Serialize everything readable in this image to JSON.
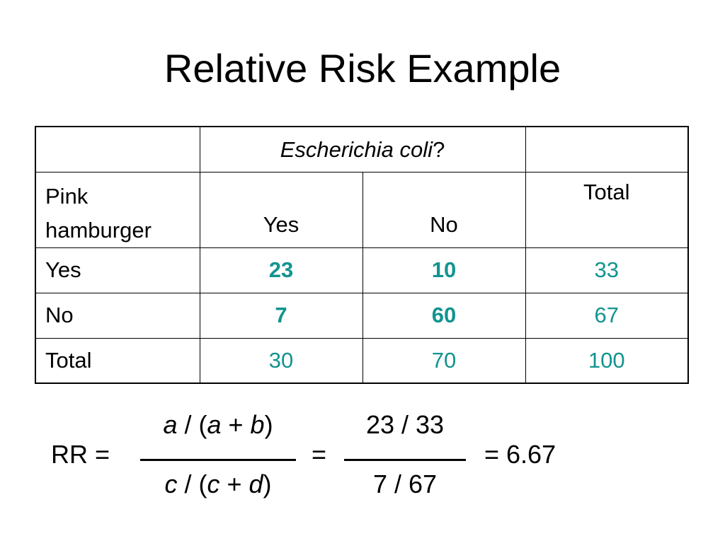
{
  "slide": {
    "title": "Relative Risk Example"
  },
  "table": {
    "header": {
      "exposure_var_label": "",
      "outcome_var_italic": "Escherichia coli",
      "outcome_var_suffix": "?"
    },
    "subheader": {
      "exposure_label": "Pink hamburger",
      "col_yes": "Yes",
      "col_no": "No",
      "col_total": "Total"
    },
    "rows": [
      {
        "label": "Yes",
        "yes": "23",
        "no": "10",
        "total": "33"
      },
      {
        "label": "No",
        "yes": "7",
        "no": "60",
        "total": "67"
      },
      {
        "label": "Total",
        "yes": "30",
        "no": "70",
        "total": "100"
      }
    ],
    "accent_color": "#12948f"
  },
  "formula": {
    "lhs": "RR =",
    "symbolic_numerator": "a / (a + b)",
    "symbolic_denominator": "c / (c + d)",
    "equals": "=",
    "numeric_numerator": "23 / 33",
    "numeric_denominator": "7 / 67",
    "result": "= 6.67"
  }
}
